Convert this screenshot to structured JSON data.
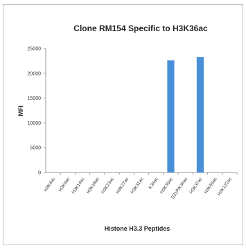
{
  "chart_data": {
    "type": "bar",
    "title": "Clone RM154 Specific to H3K36ac",
    "xlabel": "Histone H3.3 Peptides",
    "ylabel": "MFI",
    "ylim": [
      0,
      25000
    ],
    "yticks": [
      0,
      5000,
      10000,
      15000,
      20000,
      25000
    ],
    "grid": false,
    "legend": "none",
    "color": "#4a90d9",
    "categories": [
      "H3K4ac",
      "H3K9ac",
      "H3K14ac",
      "H3K18ac",
      "H3K23ac",
      "H3K27ac",
      "H3K31ac",
      "K36ac",
      "H3K36ac",
      "S31P/K36ac",
      "H3K37ac",
      "H3K56ac",
      "H3K122ac"
    ],
    "values": [
      0,
      0,
      0,
      0,
      0,
      0,
      0,
      0,
      22600,
      0,
      23300,
      0,
      0
    ]
  }
}
